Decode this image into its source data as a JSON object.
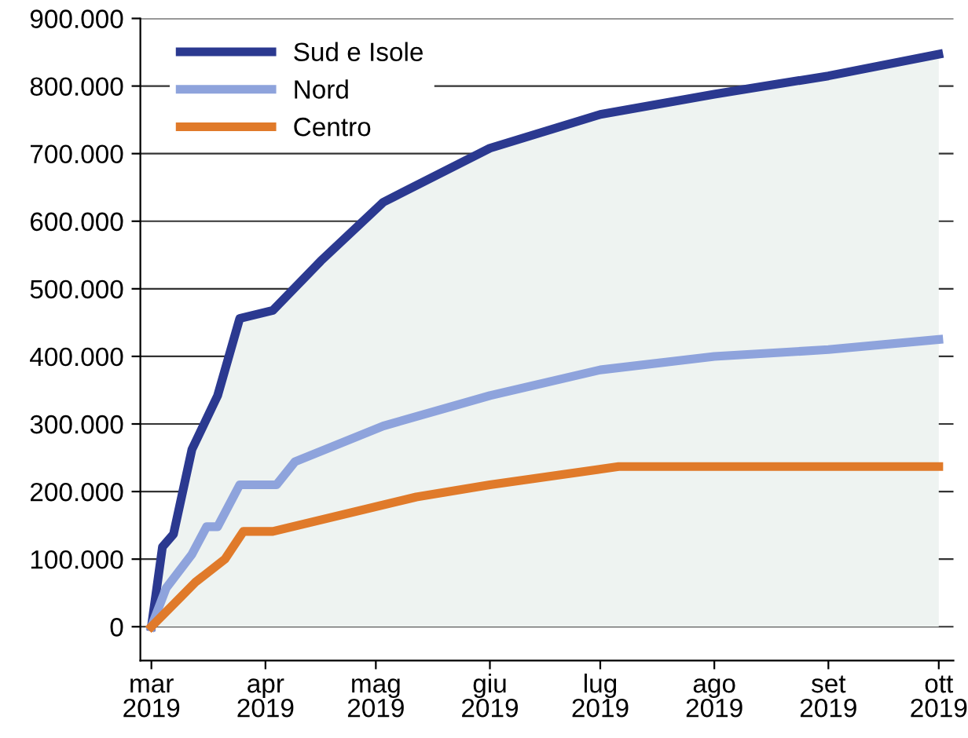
{
  "chart_data": {
    "type": "line",
    "xlim": [
      "2019-02-26",
      "2019-10-05"
    ],
    "ylim": [
      -50000,
      900000
    ],
    "yticks": [
      0,
      {
        "value": 100000,
        "label": "100.000"
      },
      {
        "value": 200000,
        "label": "200.000"
      },
      {
        "value": 300000,
        "label": "300.000"
      },
      {
        "value": 400000,
        "label": "400.000"
      },
      {
        "value": 500000,
        "label": "500.000"
      },
      {
        "value": 600000,
        "label": "600.000"
      },
      {
        "value": 700000,
        "label": "700.000"
      },
      {
        "value": 800000,
        "label": "800.000"
      },
      {
        "value": 900000,
        "label": "900.000"
      }
    ],
    "xticks": [
      {
        "value": "2019-03-01",
        "label": "mar\n2019"
      },
      {
        "value": "2019-04-01",
        "label": "apr\n2019"
      },
      {
        "value": "2019-05-01",
        "label": "mag\n2019"
      },
      {
        "value": "2019-06-01",
        "label": "giu\n2019"
      },
      {
        "value": "2019-07-01",
        "label": "lug\n2019"
      },
      {
        "value": "2019-08-01",
        "label": "ago\n2019"
      },
      {
        "value": "2019-09-01",
        "label": "set\n2019"
      },
      {
        "value": "2019-10-01",
        "label": "ott\n2019"
      }
    ],
    "grid": "y",
    "legend": "top left",
    "line_style": "solid",
    "series": [
      {
        "name": "Sud e Isole",
        "type": "area",
        "color": "#2b3990",
        "x": [
          "2019-03-01",
          "2019-03-04",
          "2019-03-07",
          "2019-03-12",
          "2019-03-19",
          "2019-03-25",
          "2019-04-03",
          "2019-04-16",
          "2019-05-03",
          "2019-06-01",
          "2019-07-01",
          "2019-08-01",
          "2019-09-01",
          "2019-10-01"
        ],
        "values": [
          0,
          118000,
          137000,
          262000,
          342000,
          456000,
          468000,
          541000,
          628000,
          708000,
          758000,
          788000,
          815000,
          847000
        ]
      },
      {
        "name": "Nord",
        "color": "#8ea3dc",
        "x": [
          "2019-03-01",
          "2019-03-05",
          "2019-03-12",
          "2019-03-16",
          "2019-03-19",
          "2019-03-25",
          "2019-04-04",
          "2019-04-09",
          "2019-05-03",
          "2019-06-01",
          "2019-07-01",
          "2019-08-01",
          "2019-09-01",
          "2019-10-01"
        ],
        "values": [
          0,
          57000,
          107000,
          148000,
          148000,
          210000,
          210000,
          244000,
          297000,
          342000,
          380000,
          400000,
          410000,
          425000
        ]
      },
      {
        "name": "Centro",
        "color": "#e07a2a",
        "x": [
          "2019-03-01",
          "2019-03-13",
          "2019-03-21",
          "2019-03-26",
          "2019-04-03",
          "2019-05-12",
          "2019-06-01",
          "2019-07-06",
          "2019-10-01"
        ],
        "values": [
          0,
          66000,
          100000,
          141000,
          141000,
          192000,
          210000,
          237000,
          237000
        ]
      }
    ]
  }
}
